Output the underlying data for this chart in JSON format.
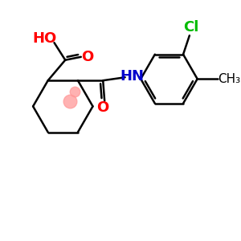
{
  "background_color": "#ffffff",
  "bond_color": "#000000",
  "figsize": [
    3.0,
    3.0
  ],
  "dpi": 100,
  "lw": 1.8,
  "atom_colors": {
    "O": "#ff0000",
    "HO": "#ff0000",
    "NH": "#0000cc",
    "Cl": "#00bb00",
    "CH3": "#000000"
  },
  "dot_color": "#ff9999"
}
